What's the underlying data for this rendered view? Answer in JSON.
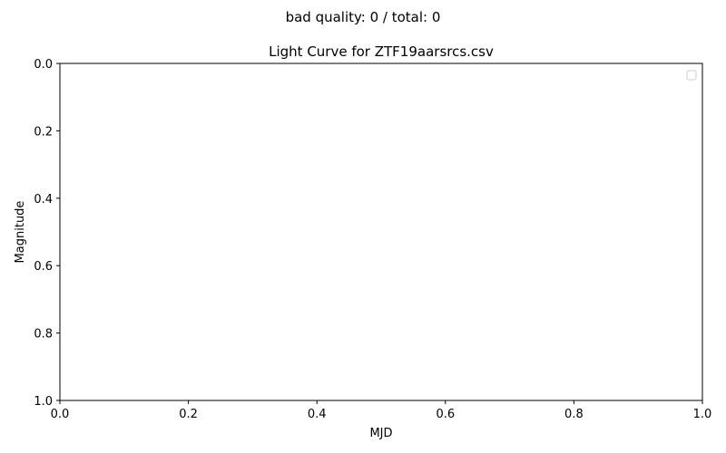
{
  "suptitle": "bad quality: 0 / total: 0",
  "chart_data": {
    "type": "scatter",
    "title": "Light Curve for ZTF19aarsrcs.csv",
    "xlabel": "MJD",
    "ylabel": "Magnitude",
    "xlim": [
      0.0,
      1.0
    ],
    "ylim": [
      0.0,
      1.0
    ],
    "y_inverted": true,
    "x_ticks": [
      "0.0",
      "0.2",
      "0.4",
      "0.6",
      "0.8",
      "1.0"
    ],
    "y_ticks": [
      "0.0",
      "0.2",
      "0.4",
      "0.6",
      "0.8",
      "1.0"
    ],
    "series": [],
    "grid": false,
    "legend": {
      "placement": "top-right",
      "entries": []
    }
  }
}
